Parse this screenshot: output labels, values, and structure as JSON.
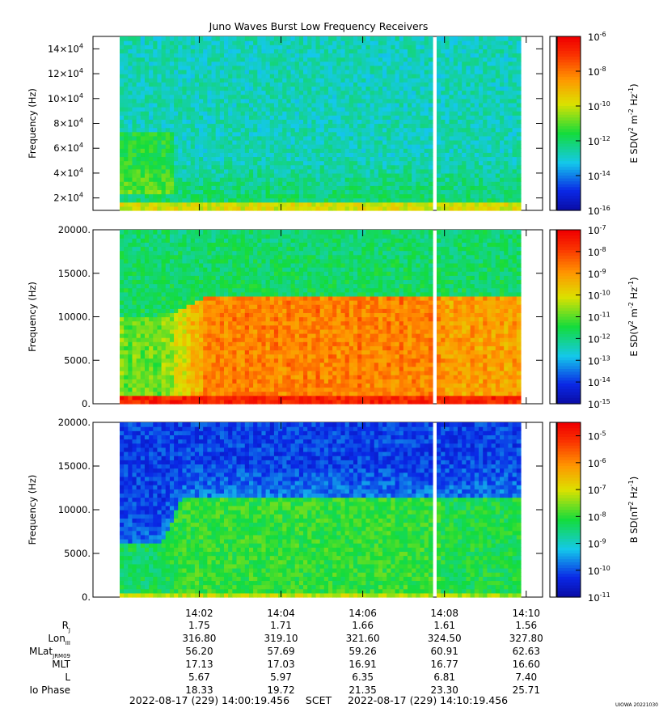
{
  "chart_data": {
    "type": "heatmap",
    "title": "Juno Waves Burst Low Frequency Receivers",
    "x_ticks": [
      "14:02",
      "14:04",
      "14:06",
      "14:08",
      "14:10"
    ],
    "x_range_label": "2022-08-17 (229) 14:00:19.456     SCET     2022-08-17 (229) 14:10:19.456",
    "credit": "UIOWA 20221030",
    "panels": [
      {
        "ylabel": "Frequency (Hz)",
        "yticks": [
          {
            "v": 20000,
            "base": "2×10",
            "exp": "4"
          },
          {
            "v": 40000,
            "base": "4×10",
            "exp": "4"
          },
          {
            "v": 60000,
            "base": "6×10",
            "exp": "4"
          },
          {
            "v": 80000,
            "base": "8×10",
            "exp": "4"
          },
          {
            "v": 100000,
            "base": "10×10",
            "exp": "4"
          },
          {
            "v": 120000,
            "base": "12×10",
            "exp": "4"
          },
          {
            "v": 140000,
            "base": "14×10",
            "exp": "4"
          }
        ],
        "ylim": [
          10000,
          150000
        ],
        "colorbar": {
          "label": "E SD(V² m⁻² Hz⁻¹)",
          "label_parts": [
            "E SD(V",
            "2",
            " m",
            "-2",
            " Hz",
            "-1",
            ")"
          ],
          "range": [
            -16,
            -6
          ],
          "ticks": [
            "-6",
            "-8",
            "-10",
            "-12",
            "-14",
            "-16"
          ]
        }
      },
      {
        "ylabel": "Frequency (Hz)",
        "yticks": [
          {
            "v": 0,
            "label": "0."
          },
          {
            "v": 5000,
            "label": "5000."
          },
          {
            "v": 10000,
            "label": "10000."
          },
          {
            "v": 15000,
            "label": "15000."
          },
          {
            "v": 20000,
            "label": "20000."
          }
        ],
        "ylim": [
          0,
          20000
        ],
        "colorbar": {
          "label": "E SD(V² m⁻² Hz⁻¹)",
          "label_parts": [
            "E SD(V",
            "2",
            " m",
            "-2",
            " Hz",
            "-1",
            ")"
          ],
          "range": [
            -15,
            -7
          ],
          "ticks": [
            "-7",
            "-8",
            "-9",
            "-10",
            "-11",
            "-12",
            "-13",
            "-14",
            "-15"
          ]
        }
      },
      {
        "ylabel": "Frequency (Hz)",
        "yticks": [
          {
            "v": 0,
            "label": "0."
          },
          {
            "v": 5000,
            "label": "5000."
          },
          {
            "v": 10000,
            "label": "10000."
          },
          {
            "v": 15000,
            "label": "15000."
          },
          {
            "v": 20000,
            "label": "20000."
          }
        ],
        "ylim": [
          0,
          20000
        ],
        "colorbar": {
          "label": "B SD(nT² Hz⁻¹)",
          "label_parts": [
            "B SD(nT",
            "2",
            " Hz",
            "-1",
            ")"
          ],
          "range": [
            -11,
            -4.5
          ],
          "ticks": [
            "-5",
            "-6",
            "-7",
            "-8",
            "-9",
            "-10",
            "-11"
          ]
        }
      }
    ],
    "ephemeris": [
      {
        "name": "R",
        "sub": "J",
        "values": [
          "1.75",
          "1.71",
          "1.66",
          "1.61",
          "1.56"
        ]
      },
      {
        "name": "Lon",
        "sub": "III",
        "values": [
          "316.80",
          "319.10",
          "321.60",
          "324.50",
          "327.80"
        ]
      },
      {
        "name": "MLat",
        "sub": "JRM09",
        "values": [
          "56.20",
          "57.69",
          "59.26",
          "60.91",
          "62.63"
        ]
      },
      {
        "name": "MLT",
        "sub": "",
        "values": [
          "17.13",
          "17.03",
          "16.91",
          "16.77",
          "16.60"
        ]
      },
      {
        "name": "L",
        "sub": "",
        "values": [
          "5.67",
          "5.97",
          "6.35",
          "6.81",
          "7.40"
        ]
      },
      {
        "name": "Io Phase",
        "sub": "",
        "values": [
          "18.33",
          "19.72",
          "21.35",
          "23.30",
          "25.71"
        ]
      }
    ]
  }
}
